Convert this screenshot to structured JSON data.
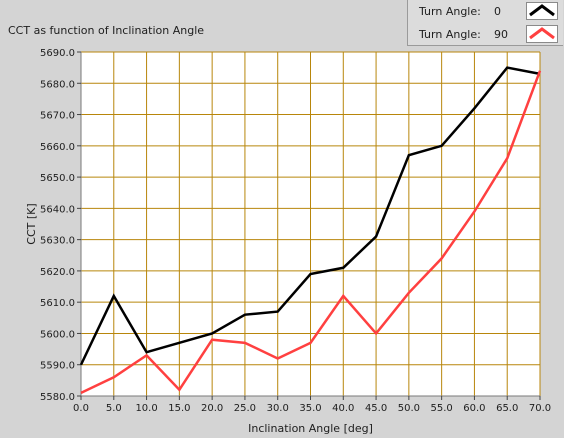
{
  "chart_data": {
    "type": "line",
    "title": "CCT as function of Inclination Angle",
    "xlabel": "Inclination Angle [deg]",
    "ylabel": "CCT [K]",
    "xlim": [
      0,
      70
    ],
    "ylim": [
      5580,
      5690
    ],
    "x_ticks": [
      "0.0",
      "5.0",
      "10.0",
      "15.0",
      "20.0",
      "25.0",
      "30.0",
      "35.0",
      "40.0",
      "45.0",
      "50.0",
      "55.0",
      "60.0",
      "65.0",
      "70.0"
    ],
    "y_ticks": [
      "5580.0",
      "5590.0",
      "5600.0",
      "5610.0",
      "5620.0",
      "5630.0",
      "5640.0",
      "5650.0",
      "5660.0",
      "5670.0",
      "5680.0",
      "5690.0"
    ],
    "grid": true,
    "legend_position": "top-right",
    "x": [
      0,
      5,
      10,
      15,
      20,
      25,
      30,
      35,
      40,
      45,
      50,
      55,
      60,
      65,
      70
    ],
    "series": [
      {
        "legend_text": "Turn Angle:",
        "legend_value": "0",
        "color": "#000000",
        "values": [
          5590,
          5612,
          5594,
          5597,
          5600,
          5606,
          5607,
          5619,
          5621,
          5631,
          5657,
          5660,
          5672,
          5685,
          5683
        ]
      },
      {
        "legend_text": "Turn Angle:",
        "legend_value": "90",
        "color": "#ff4040",
        "values": [
          5581,
          5586,
          5593,
          5582,
          5598,
          5597,
          5592,
          5597,
          5612,
          5600,
          5613,
          5624,
          5639,
          5656,
          5684
        ]
      }
    ]
  },
  "colors": {
    "plot_background": "#ffffff",
    "grid": "#b8860b",
    "frame": "#d4d4d4"
  }
}
